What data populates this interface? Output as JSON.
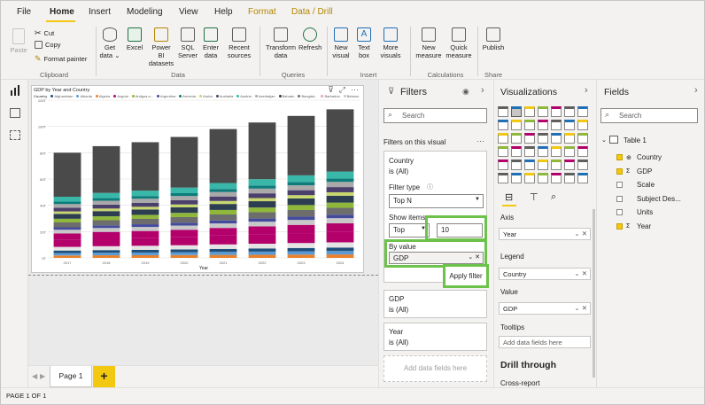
{
  "menu": {
    "items": [
      "File",
      "Home",
      "Insert",
      "Modeling",
      "View",
      "Help"
    ],
    "context_items": [
      "Format",
      "Data / Drill"
    ]
  },
  "ribbon": {
    "clipboard": {
      "paste": "Paste",
      "cut": "Cut",
      "copy": "Copy",
      "format_painter": "Format painter",
      "group": "Clipboard"
    },
    "data": {
      "get_data": "Get data",
      "excel": "Excel",
      "powerbi": "Power BI datasets",
      "sql": "SQL Server",
      "enter": "Enter data",
      "recent": "Recent sources",
      "group": "Data"
    },
    "queries": {
      "transform": "Transform data",
      "refresh": "Refresh",
      "group": "Queries"
    },
    "insert": {
      "new_visual": "New visual",
      "text_box": "Text box",
      "more_visuals": "More visuals",
      "group": "Insert"
    },
    "calc": {
      "new_measure": "New measure",
      "quick_measure": "Quick measure",
      "group": "Calculations"
    },
    "share": {
      "publish": "Publish",
      "group": "Share"
    }
  },
  "visual": {
    "title": "GDP by Year and Country",
    "legend_label": "Country",
    "legend": [
      "Afghanistan",
      "Albania",
      "Algeria",
      "Angola",
      "Antigua a...",
      "Argentina",
      "Armenia",
      "Aruba",
      "Australia",
      "Austria",
      "Azerbaijan",
      "Bahrain",
      "Banglad...",
      "Barbados",
      "Belarus"
    ]
  },
  "chart_data": {
    "type": "bar",
    "stacked": true,
    "categories": [
      "2017",
      "2018",
      "2019",
      "2020",
      "2021",
      "2022",
      "2023",
      "2024"
    ],
    "xlabel": "Year",
    "ylabel": "",
    "ylim": [
      0,
      120
    ],
    "y_ticks": [
      "0T",
      "20T",
      "40T",
      "60T",
      "80T",
      "100T",
      "120T"
    ],
    "totals": [
      80,
      85,
      88,
      92,
      98,
      103,
      108,
      113
    ],
    "segment_colors": [
      "#e8822d",
      "#5b9bd5",
      "#1f4e79",
      "#e4e4e4",
      "#b3006b",
      "#b3006b",
      "#c8c8c8",
      "#444b9c",
      "#6d6d6d",
      "#8fb83b",
      "#2c3e50",
      "#c7d66d",
      "#4b3f6b",
      "#a9a9a9",
      "#0e7c7b",
      "#39b7a8",
      "#4a4a4a"
    ],
    "segment_values": [
      2,
      2,
      2,
      3,
      6,
      5,
      3,
      2,
      4,
      3,
      4,
      2,
      3,
      3,
      2,
      4,
      36
    ]
  },
  "pages": {
    "tab": "Page 1",
    "add": "+"
  },
  "status": "PAGE 1 OF 1",
  "filters": {
    "title": "Filters",
    "search": "Search",
    "on_visual": "Filters on this visual",
    "country": {
      "name": "Country",
      "state": "is (All)"
    },
    "filter_type_label": "Filter type",
    "filter_type": "Top N",
    "show_items_label": "Show items:",
    "show_direction": "Top",
    "show_count": "10",
    "by_value_label": "By value",
    "by_value": "GDP",
    "apply": "Apply filter",
    "gdp": {
      "name": "GDP",
      "state": "is (All)"
    },
    "year": {
      "name": "Year",
      "state": "is (All)"
    },
    "add_fields": "Add data fields here"
  },
  "visualizations": {
    "title": "Visualizations",
    "axis_label": "Axis",
    "axis_value": "Year",
    "legend_label": "Legend",
    "legend_value": "Country",
    "value_label": "Value",
    "value_value": "GDP",
    "tooltips_label": "Tooltips",
    "tooltips_placeholder": "Add data fields here",
    "drill": "Drill through",
    "cross_report": "Cross-report"
  },
  "fields": {
    "title": "Fields",
    "search": "Search",
    "table": "Table 1",
    "items": [
      {
        "name": "Country",
        "checked": true
      },
      {
        "name": "GDP",
        "checked": true
      },
      {
        "name": "Scale",
        "checked": false
      },
      {
        "name": "Subject Des...",
        "checked": false
      },
      {
        "name": "Units",
        "checked": false
      },
      {
        "name": "Year",
        "checked": true
      }
    ]
  }
}
